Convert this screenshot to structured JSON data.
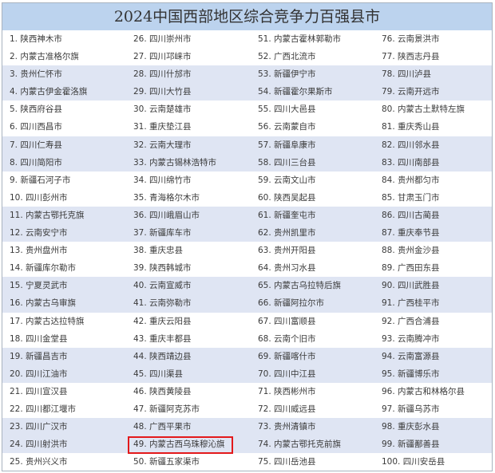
{
  "title": "2024中国西部地区综合竞争力百强县市",
  "highlight_rank": 49,
  "colors": {
    "title_bg": "#bcd3ee",
    "band": "#dfe5f3",
    "highlight": "#e3191b"
  },
  "items": [
    "1. 陕西神木市",
    "2. 内蒙古准格尔旗",
    "3. 贵州仁怀市",
    "4. 内蒙古伊金霍洛旗",
    "5. 陕西府谷县",
    "6. 四川西昌市",
    "7. 四川仁寿县",
    "8. 四川简阳市",
    "9. 新疆石河子市",
    "10. 四川彭州市",
    "11. 内蒙古鄂托克旗",
    "12. 云南安宁市",
    "13. 贵州盘州市",
    "14. 新疆库尔勒市",
    "15. 宁夏灵武市",
    "16. 内蒙古乌审旗",
    "17. 内蒙古达拉特旗",
    "18. 四川金堂县",
    "19. 新疆昌吉市",
    "20. 四川江油市",
    "21. 四川宣汉县",
    "22. 四川都江堰市",
    "23. 四川广汉市",
    "24. 四川射洪市",
    "25. 贵州兴义市",
    "26. 四川崇州市",
    "27. 四川邛崃市",
    "28. 四川什邡市",
    "29. 四川大竹县",
    "30. 云南楚雄市",
    "31. 重庆垫江县",
    "32. 云南大理市",
    "33. 内蒙古锡林浩特市",
    "34. 四川绵竹市",
    "35. 青海格尔木市",
    "36. 四川峨眉山市",
    "37. 新疆库车市",
    "38. 重庆忠县",
    "39. 陕西韩城市",
    "40. 云南宣威市",
    "41. 云南弥勒市",
    "42. 重庆云阳县",
    "43. 重庆丰都县",
    "44. 陕西靖边县",
    "45. 四川渠县",
    "46. 陕西黄陵县",
    "47. 新疆阿克苏市",
    "48. 广西平果市",
    "49. 内蒙古西乌珠穆沁旗",
    "50. 新疆五家渠市",
    "51. 内蒙古霍林郭勒市",
    "52. 广西北流市",
    "53. 新疆伊宁市",
    "54. 新疆霍尔果斯市",
    "55. 四川大邑县",
    "56. 云南蒙自市",
    "57. 新疆阜康市",
    "58. 四川三台县",
    "59. 云南文山市",
    "60. 陕西吴起县",
    "61. 新疆奎屯市",
    "62. 贵州凯里市",
    "63. 贵州开阳县",
    "64. 贵州习水县",
    "65. 内蒙古乌拉特后旗",
    "66. 新疆阿拉尔市",
    "67. 四川富顺县",
    "68. 云南个旧市",
    "69. 新疆喀什市",
    "70. 四川中江县",
    "71. 陕西彬州市",
    "72. 四川威远县",
    "73. 贵州清镇市",
    "74. 内蒙古鄂托克前旗",
    "75. 四川岳池县",
    "76. 云南景洪市",
    "77. 陕西志丹县",
    "78. 四川泸县",
    "79. 云南开远市",
    "80. 内蒙古土默特左旗",
    "81. 重庆秀山县",
    "82. 四川邻水县",
    "83. 四川南部县",
    "84. 贵州都匀市",
    "85. 甘肃玉门市",
    "86. 四川古蔺县",
    "87. 重庆奉节县",
    "88. 贵州金沙县",
    "89. 广西田东县",
    "90. 四川武胜县",
    "91. 广西桂平市",
    "92. 广西合浦县",
    "93. 云南腾冲市",
    "94. 云南富源县",
    "95. 新疆博乐市",
    "96. 内蒙古和林格尔县",
    "97. 新疆乌苏市",
    "98. 重庆彭水县",
    "99. 新疆鄯善县",
    "100. 四川安岳县"
  ]
}
